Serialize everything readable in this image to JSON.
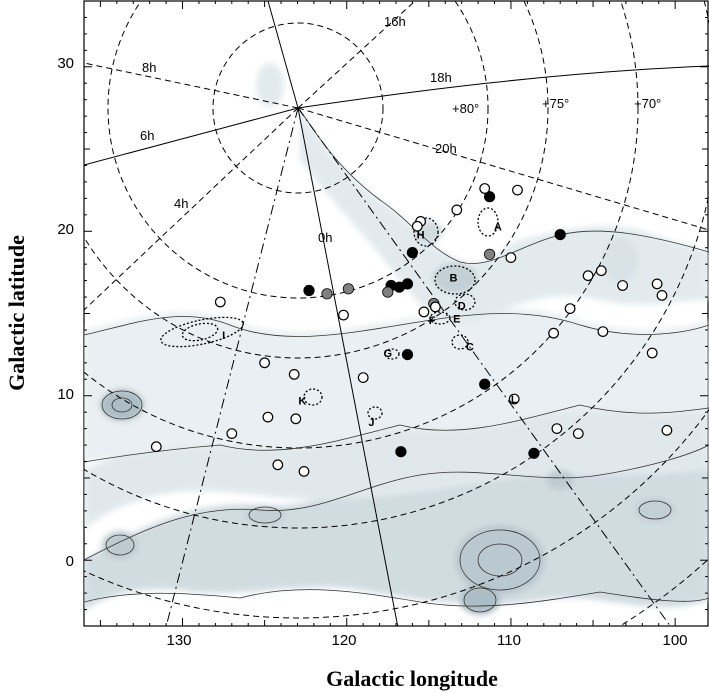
{
  "chart_data": {
    "type": "scatter",
    "xlabel": "Galactic longitude",
    "ylabel": "Galactic latitude",
    "xlim": [
      136,
      98
    ],
    "ylim": [
      -4,
      34
    ],
    "xticks": [
      "130",
      "120",
      "110",
      "100"
    ],
    "yticks": [
      "0",
      "10",
      "20",
      "30"
    ],
    "grid": false,
    "ra_labels": [
      "16h",
      "8h",
      "18h",
      "6h",
      "20h",
      "4h",
      "0h"
    ],
    "dec_labels": [
      "+80°",
      "+75°",
      "+70°"
    ],
    "regions": [
      {
        "label": "A",
        "l": 110.8,
        "b": 20.3
      },
      {
        "label": "B",
        "l": 113.5,
        "b": 17.2
      },
      {
        "label": "C",
        "l": 112.5,
        "b": 13.0
      },
      {
        "label": "D",
        "l": 113.0,
        "b": 15.5
      },
      {
        "label": "E",
        "l": 113.3,
        "b": 14.7
      },
      {
        "label": "F",
        "l": 114.8,
        "b": 14.6
      },
      {
        "label": "G",
        "l": 117.5,
        "b": 12.6
      },
      {
        "label": "H",
        "l": 115.5,
        "b": 19.8
      },
      {
        "label": "I",
        "l": 127.5,
        "b": 13.7
      },
      {
        "label": "J",
        "l": 118.5,
        "b": 8.4
      },
      {
        "label": "K",
        "l": 122.7,
        "b": 9.7
      },
      {
        "label": "L",
        "l": 109.8,
        "b": 9.8
      }
    ],
    "series": [
      {
        "marker": "filled",
        "points": [
          [
            122.3,
            16.4
          ],
          [
            117.3,
            16.7
          ],
          [
            116.8,
            16.6
          ],
          [
            111.3,
            22.1
          ],
          [
            107,
            19.8
          ],
          [
            116,
            18.7
          ],
          [
            116.3,
            12.5
          ],
          [
            111.6,
            10.7
          ],
          [
            108.6,
            6.5
          ],
          [
            116.7,
            6.6
          ],
          [
            116.3,
            16.8
          ]
        ]
      },
      {
        "marker": "gray",
        "points": [
          [
            121.2,
            16.2
          ],
          [
            117.5,
            16.3
          ],
          [
            114.7,
            15.6
          ],
          [
            119.9,
            16.5
          ],
          [
            111.3,
            18.6
          ]
        ]
      },
      {
        "marker": "open",
        "points": [
          [
            111.6,
            22.6
          ],
          [
            109.6,
            22.5
          ],
          [
            113.3,
            21.3
          ],
          [
            115.5,
            20.6
          ],
          [
            115.7,
            20.3
          ],
          [
            110,
            18.4
          ],
          [
            104.5,
            17.6
          ],
          [
            105.3,
            17.3
          ],
          [
            103.2,
            16.7
          ],
          [
            101.1,
            16.8
          ],
          [
            100.8,
            16.1
          ],
          [
            106.4,
            15.3
          ],
          [
            114.6,
            15.4
          ],
          [
            115.3,
            15.1
          ],
          [
            120.2,
            14.9
          ],
          [
            127.7,
            15.7
          ],
          [
            107.4,
            13.8
          ],
          [
            104.4,
            13.9
          ],
          [
            101.4,
            12.6
          ],
          [
            125,
            12
          ],
          [
            123.2,
            11.3
          ],
          [
            119,
            11.1
          ],
          [
            124.8,
            8.7
          ],
          [
            123.1,
            8.6
          ],
          [
            127,
            7.7
          ],
          [
            131.6,
            6.9
          ],
          [
            124.2,
            5.8
          ],
          [
            122.6,
            5.4
          ],
          [
            109.8,
            9.8
          ],
          [
            107.2,
            8.0
          ],
          [
            105.9,
            7.7
          ],
          [
            100.5,
            7.9
          ]
        ]
      }
    ],
    "labels_note": ""
  }
}
